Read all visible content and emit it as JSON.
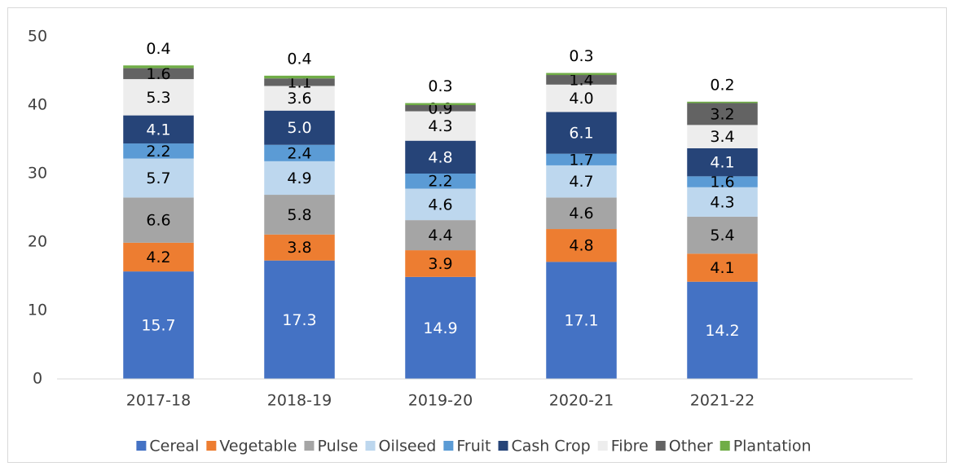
{
  "chart_data": {
    "type": "stacked_bar",
    "categories": [
      "2017-18",
      "2018-19",
      "2019-20",
      "2020-21",
      "2021-22"
    ],
    "series": [
      {
        "name": "Cereal",
        "color": "#4472c4",
        "values": [
          15.7,
          17.3,
          14.9,
          17.1,
          14.2
        ],
        "value_labels": [
          "15.7",
          "17.3",
          "14.9",
          "17.1",
          "14.2"
        ]
      },
      {
        "name": "Vegetable",
        "color": "#ed7d31",
        "values": [
          4.2,
          3.8,
          3.9,
          4.8,
          4.1
        ],
        "value_labels": [
          "4.2",
          "3.8",
          "3.9",
          "4.8",
          "4.1"
        ]
      },
      {
        "name": "Pulse",
        "color": "#a5a5a5",
        "values": [
          6.6,
          5.8,
          4.4,
          4.6,
          5.4
        ],
        "value_labels": [
          "6.6",
          "5.8",
          "4.4",
          "4.6",
          "5.4"
        ]
      },
      {
        "name": "Oilseed",
        "color": "#bdd7ee",
        "values": [
          5.7,
          4.9,
          4.6,
          4.7,
          4.3
        ],
        "value_labels": [
          "5.7",
          "4.9",
          "4.6",
          "4.7",
          "4.3"
        ]
      },
      {
        "name": "Fruit",
        "color": "#5b9bd5",
        "values": [
          2.2,
          2.4,
          2.2,
          1.7,
          1.6
        ],
        "value_labels": [
          "2.2",
          "2.4",
          "2.2",
          "1.7",
          "1.6"
        ]
      },
      {
        "name": "Cash Crop",
        "color": "#264478",
        "values": [
          4.1,
          5.0,
          4.8,
          6.1,
          4.1
        ],
        "value_labels": [
          "4.1",
          "5.0",
          "4.8",
          "6.1",
          "4.1"
        ]
      },
      {
        "name": "Fibre",
        "color": "#ededed",
        "values": [
          5.3,
          3.6,
          4.3,
          4.0,
          3.4
        ],
        "value_labels": [
          "5.3",
          "3.6",
          "4.3",
          "4.0",
          "3.4"
        ]
      },
      {
        "name": "Other",
        "color": "#636363",
        "values": [
          1.6,
          1.1,
          0.9,
          1.4,
          3.2
        ],
        "value_labels": [
          "1.6",
          "1.1",
          "0.9",
          "1.4",
          "3.2"
        ]
      },
      {
        "name": "Plantation",
        "color": "#70ad47",
        "values": [
          0.4,
          0.4,
          0.3,
          0.3,
          0.2
        ],
        "value_labels": [
          "0.4",
          "0.4",
          "0.3",
          "0.3",
          "0.2"
        ]
      }
    ],
    "ylim": [
      0,
      50
    ],
    "yticks": [
      0,
      10,
      20,
      30,
      40,
      50
    ],
    "grid": false,
    "legend": "bottom"
  }
}
